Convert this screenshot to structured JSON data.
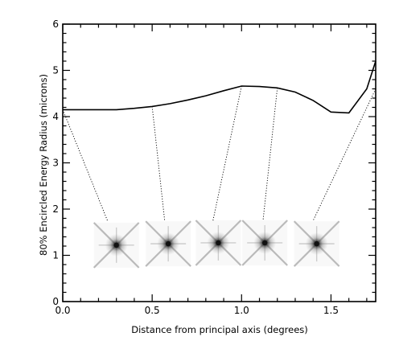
{
  "chart_data": {
    "type": "line",
    "title": "",
    "xlabel": "Distance from principal axis (degrees)",
    "ylabel": "80% Encircled Energy Radius (microns)",
    "xlim": [
      0.0,
      1.75
    ],
    "ylim": [
      0,
      6
    ],
    "x_ticks": [
      "0.0",
      "0.5",
      "1.0",
      "1.5"
    ],
    "y_ticks": [
      "0",
      "1",
      "2",
      "3",
      "4",
      "5",
      "6"
    ],
    "grid": false,
    "legend": "none",
    "series": [
      {
        "x": [
          0.0,
          0.1,
          0.2,
          0.3,
          0.4,
          0.5,
          0.6,
          0.7,
          0.8,
          0.9,
          1.0,
          1.1,
          1.2,
          1.3,
          1.4,
          1.5,
          1.6,
          1.7,
          1.75
        ],
        "values": [
          4.15,
          4.15,
          4.15,
          4.15,
          4.18,
          4.22,
          4.28,
          4.36,
          4.45,
          4.56,
          4.66,
          4.65,
          4.62,
          4.53,
          4.35,
          4.1,
          4.08,
          4.6,
          5.2
        ]
      }
    ],
    "psf_insets": [
      {
        "center_x": 0.3,
        "center_y": 1.22,
        "leader_from": [
          0.0,
          4.15
        ],
        "leader_to": [
          0.25,
          1.75
        ]
      },
      {
        "center_x": 0.59,
        "center_y": 1.25,
        "leader_from": [
          0.5,
          4.22
        ],
        "leader_to": [
          0.57,
          1.75
        ]
      },
      {
        "center_x": 0.87,
        "center_y": 1.27,
        "leader_from": [
          1.0,
          4.66
        ],
        "leader_to": [
          0.84,
          1.75
        ]
      },
      {
        "center_x": 1.13,
        "center_y": 1.27,
        "leader_from": [
          1.2,
          4.62
        ],
        "leader_to": [
          1.12,
          1.75
        ]
      },
      {
        "center_x": 1.42,
        "center_y": 1.25,
        "leader_from": [
          1.75,
          4.6
        ],
        "leader_to": [
          1.4,
          1.75
        ]
      }
    ]
  }
}
